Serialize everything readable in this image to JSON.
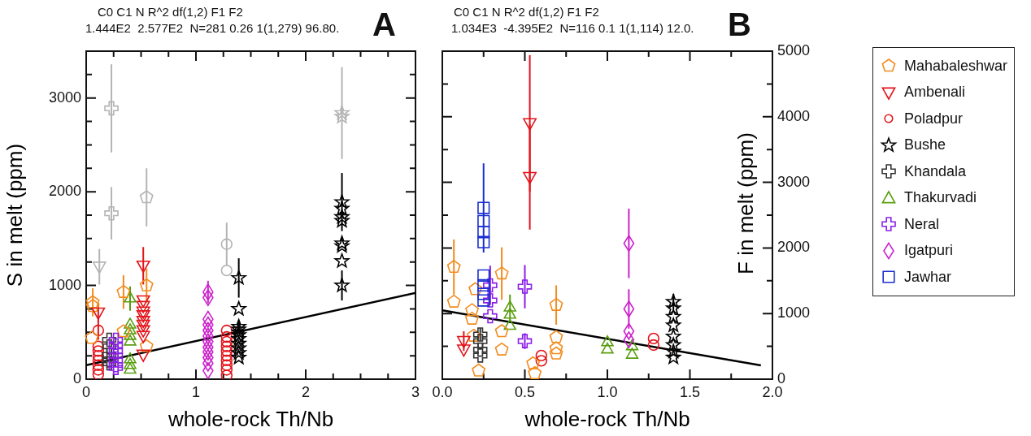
{
  "chart_data": [
    {
      "type": "scatter",
      "xlabel": "whole-rock Th/Nb",
      "ylabel": "S in melt (ppm)",
      "xlim": [
        0,
        3
      ],
      "xticks": [
        0,
        {
          "value": 0.25,
          "label": null
        },
        {
          "value": 0.5,
          "label": null
        },
        {
          "value": 0.75,
          "label": null
        },
        1,
        {
          "value": 1.25,
          "label": null
        },
        {
          "value": 1.5,
          "label": null
        },
        {
          "value": 1.75,
          "label": null
        },
        2,
        {
          "value": 2.25,
          "label": null
        },
        {
          "value": 2.5,
          "label": null
        },
        {
          "value": 2.75,
          "label": null
        },
        3
      ],
      "ylim": [
        0,
        3500
      ],
      "yticks": [
        0,
        {
          "value": 250,
          "label": null
        },
        {
          "value": 500,
          "label": null
        },
        {
          "value": 750,
          "label": null
        },
        1000,
        {
          "value": 1250,
          "label": null
        },
        {
          "value": 1500,
          "label": null
        },
        {
          "value": 1750,
          "label": null
        },
        2000,
        {
          "value": 2250,
          "label": null
        },
        {
          "value": 2500,
          "label": null
        },
        {
          "value": 2750,
          "label": null
        },
        3000,
        {
          "value": 3250,
          "label": null
        }
      ],
      "annotations": [
        "C0 C1 N R^2 df(1,2) F1 F2",
        "1.444E2  2.577E2  N=281 0.26 1(1,279) 96.80.",
        "A"
      ],
      "series": [
        {
          "color": "#f28c1e",
          "x": [
            0.06,
            0.06,
            0.05,
            0.34,
            0.34,
            0.55,
            0.55
          ],
          "values": [
            820,
            780,
            440,
            930,
            510,
            1000,
            350
          ],
          "errors": [
            150,
            null,
            null,
            180,
            null,
            180,
            null
          ]
        },
        {
          "color": "#e3141b",
          "marker": "triangle_down",
          "x": [
            0.11,
            0.52,
            0.52,
            0.52,
            0.52,
            0.52,
            0.52,
            0.52,
            0.52,
            0.52,
            0.52
          ],
          "values": [
            710,
            1210,
            840,
            780,
            720,
            680,
            620,
            580,
            520,
            460,
            260
          ],
          "errors": [
            100,
            200,
            null,
            null,
            null,
            null,
            null,
            null,
            null,
            null,
            null
          ]
        },
        {
          "color": "#e3141b",
          "marker": "circle",
          "x": [
            0.11,
            0.11,
            0.11,
            0.11,
            0.11,
            0.11,
            0.11,
            0.11,
            1.28,
            1.28,
            1.28,
            1.28,
            1.28,
            1.28,
            1.28,
            1.28,
            1.28,
            1.28
          ],
          "values": [
            520,
            350,
            300,
            250,
            200,
            150,
            100,
            50,
            520,
            450,
            400,
            350,
            300,
            250,
            200,
            150,
            100,
            40
          ],
          "errors": [
            100,
            null,
            null,
            null,
            null,
            null,
            null,
            null,
            null,
            null,
            null,
            null,
            null,
            null,
            null,
            null,
            null,
            null
          ]
        },
        {
          "color": "#000000",
          "marker": "star",
          "x": [
            1.39,
            1.39,
            1.39,
            1.39,
            1.39,
            1.39,
            1.39,
            1.39,
            1.39,
            1.39,
            1.39,
            2.33,
            2.33,
            2.33,
            2.33,
            2.33,
            2.33,
            2.33,
            2.33
          ],
          "values": [
            1080,
            750,
            560,
            530,
            500,
            470,
            430,
            380,
            330,
            280,
            230,
            1890,
            1820,
            1730,
            1690,
            1450,
            1420,
            1260,
            1000
          ],
          "errors": [
            210,
            null,
            null,
            null,
            null,
            null,
            null,
            null,
            null,
            null,
            null,
            310,
            null,
            null,
            null,
            null,
            null,
            null,
            160
          ]
        },
        {
          "color": "#333333",
          "marker": "plus",
          "x": [
            0.21,
            0.21,
            0.21,
            0.21,
            0.21
          ],
          "values": [
            420,
            350,
            260,
            200,
            170
          ]
        },
        {
          "color": "#5a9e10",
          "marker": "triangle",
          "x": [
            0.4,
            0.4,
            0.4,
            0.4,
            0.4,
            0.4,
            0.4,
            0.4
          ],
          "values": [
            860,
            580,
            520,
            460,
            400,
            210,
            150,
            100
          ],
          "errors": [
            130,
            null,
            null,
            null,
            null,
            null,
            null,
            null
          ]
        },
        {
          "color": "#8a1ee8",
          "marker": "plus",
          "x": [
            0.27,
            0.27,
            0.27,
            0.27,
            0.27,
            0.27,
            0.27
          ],
          "values": [
            420,
            360,
            300,
            250,
            200,
            150,
            120
          ]
        },
        {
          "color": "#cc22cc",
          "marker": "diamond",
          "x": [
            1.11,
            1.11,
            1.11,
            1.11,
            1.11,
            1.11,
            1.11,
            1.11,
            1.11,
            1.11,
            1.11,
            1.11
          ],
          "values": [
            930,
            870,
            640,
            580,
            520,
            460,
            400,
            340,
            290,
            230,
            170,
            90
          ],
          "errors": [
            120,
            null,
            null,
            null,
            null,
            null,
            null,
            null,
            null,
            null,
            null,
            null
          ]
        },
        {
          "color": "#b4b4b4",
          "marker": "plus",
          "x": [
            0.23,
            0.23
          ],
          "values": [
            2890,
            1770
          ],
          "errors": [
            470,
            280
          ]
        },
        {
          "color": "#b4b4b4",
          "marker": "star",
          "x": [
            2.33,
            2.33
          ],
          "values": [
            2840,
            2800
          ],
          "errors": [
            490,
            null
          ]
        },
        {
          "color": "#b4b4b4",
          "x": [
            0.55
          ],
          "values": [
            1940
          ],
          "errors": [
            310
          ]
        },
        {
          "color": "#b4b4b4",
          "marker": "triangle_down",
          "x": [
            0.12
          ],
          "values": [
            1200
          ],
          "errors": [
            190
          ]
        },
        {
          "color": "#b4b4b4",
          "marker": "circle",
          "x": [
            1.28,
            1.28
          ],
          "values": [
            1440,
            1160
          ],
          "errors": [
            230,
            null
          ]
        },
        {
          "type": "line",
          "color": "#000000",
          "marker": "none",
          "x": [
            0,
            3
          ],
          "values": [
            150,
            920
          ]
        }
      ]
    },
    {
      "type": "scatter",
      "xlabel": "whole-rock Th/Nb",
      "y2label": "F in melt (ppm)",
      "legend": "right",
      "xlim": [
        0,
        2
      ],
      "xticks": [
        {
          "value": 0,
          "label": "0.0"
        },
        {
          "value": 0.25,
          "label": null
        },
        {
          "value": 0.5,
          "label": "0.5"
        },
        {
          "value": 0.75,
          "label": null
        },
        {
          "value": 1,
          "label": "1.0"
        },
        {
          "value": 1.25,
          "label": null
        },
        {
          "value": 1.5,
          "label": "1.5"
        },
        {
          "value": 1.75,
          "label": null
        },
        {
          "value": 2,
          "label": "2.0"
        }
      ],
      "y2lim": [
        0,
        5000
      ],
      "y2ticks": [
        0,
        {
          "value": 500,
          "label": null
        },
        1000,
        {
          "value": 1500,
          "label": null
        },
        2000,
        {
          "value": 2500,
          "label": null
        },
        3000,
        {
          "value": 3500,
          "label": null
        },
        4000,
        {
          "value": 4500,
          "label": null
        },
        5000
      ],
      "annotations": [
        "C0 C1 N R^2 df(1,2) F1 F2",
        "1.034E3  -4.395E2  N=116 0.1 1(1,114) 12.0.",
        "B"
      ],
      "series": [
        {
          "name": "Mahabaleshwar",
          "color": "#f28c1e",
          "axis": "y2",
          "x": [
            0.07,
            0.07,
            0.36,
            0.18,
            0.18,
            0.2,
            0.36,
            0.36,
            0.22,
            0.55,
            0.56,
            0.69,
            0.69,
            0.69,
            0.69,
            0.19
          ],
          "values": [
            1710,
            1180,
            1610,
            1050,
            920,
            1370,
            730,
            450,
            130,
            240,
            90,
            1130,
            640,
            470,
            390,
            660
          ],
          "errors": [
            420,
            null,
            400,
            null,
            null,
            null,
            null,
            null,
            null,
            null,
            null,
            300,
            null,
            null,
            null,
            null
          ]
        },
        {
          "name": "Ambenali",
          "color": "#e3141b",
          "marker": "triangle_down",
          "axis": "y2",
          "x": [
            0.13,
            0.13,
            0.53,
            0.53
          ],
          "values": [
            580,
            450,
            3900,
            3080
          ],
          "errors": [
            150,
            null,
            1040,
            800
          ]
        },
        {
          "name": "Poladpur",
          "color": "#e3141b",
          "marker": "circle",
          "axis": "y2",
          "x": [
            0.6,
            0.6,
            1.28,
            1.28
          ],
          "values": [
            360,
            280,
            620,
            520
          ]
        },
        {
          "name": "Bushe",
          "color": "#000000",
          "marker": "star",
          "axis": "y2",
          "x": [
            1.4,
            1.4,
            1.4,
            1.4,
            1.4,
            1.4,
            1.4,
            1.4
          ],
          "values": [
            1180,
            1080,
            950,
            820,
            650,
            520,
            420,
            330
          ],
          "errors": [
            120,
            null,
            null,
            null,
            null,
            null,
            null,
            null
          ]
        },
        {
          "name": "Khandala",
          "color": "#333333",
          "marker": "plus",
          "axis": "y2",
          "x": [
            0.23,
            0.23,
            0.23,
            0.23
          ],
          "values": [
            680,
            580,
            450,
            360
          ],
          "errors": [
            100,
            null,
            null,
            null
          ]
        },
        {
          "name": "Thakurvadi",
          "color": "#5a9e10",
          "marker": "triangle",
          "axis": "y2",
          "x": [
            0.41,
            0.41,
            0.41,
            1,
            1,
            1.15,
            1.15
          ],
          "values": [
            1090,
            980,
            810,
            560,
            450,
            500,
            370
          ],
          "errors": [
            200,
            null,
            null,
            null,
            null,
            null,
            null
          ]
        },
        {
          "name": "Neral",
          "color": "#8a1ee8",
          "marker": "plus",
          "axis": "y2",
          "x": [
            0.29,
            0.29,
            0.29,
            0.5,
            0.5
          ],
          "values": [
            1430,
            1200,
            960,
            1410,
            580
          ],
          "errors": [
            300,
            null,
            null,
            330,
            120
          ]
        },
        {
          "name": "Igatpuri",
          "color": "#cc22cc",
          "marker": "diamond",
          "axis": "y2",
          "x": [
            1.13,
            1.13,
            1.13,
            1.13
          ],
          "values": [
            2070,
            1070,
            730,
            600
          ],
          "errors": [
            530,
            300,
            null,
            null
          ]
        },
        {
          "name": "Jawhar",
          "color": "#1a2fd0",
          "marker": "square",
          "axis": "y2",
          "x": [
            0.25,
            0.25,
            0.25,
            0.25,
            0.25,
            0.25,
            0.25,
            0.25
          ],
          "values": [
            2610,
            2410,
            2240,
            2090,
            1580,
            1430,
            1300,
            1200
          ],
          "errors": [
            680,
            null,
            null,
            null,
            null,
            null,
            null,
            null
          ]
        },
        {
          "type": "line",
          "color": "#000000",
          "marker": "none",
          "axis": "y2",
          "x": [
            0,
            1.93
          ],
          "values": [
            1050,
            210
          ]
        }
      ]
    }
  ]
}
